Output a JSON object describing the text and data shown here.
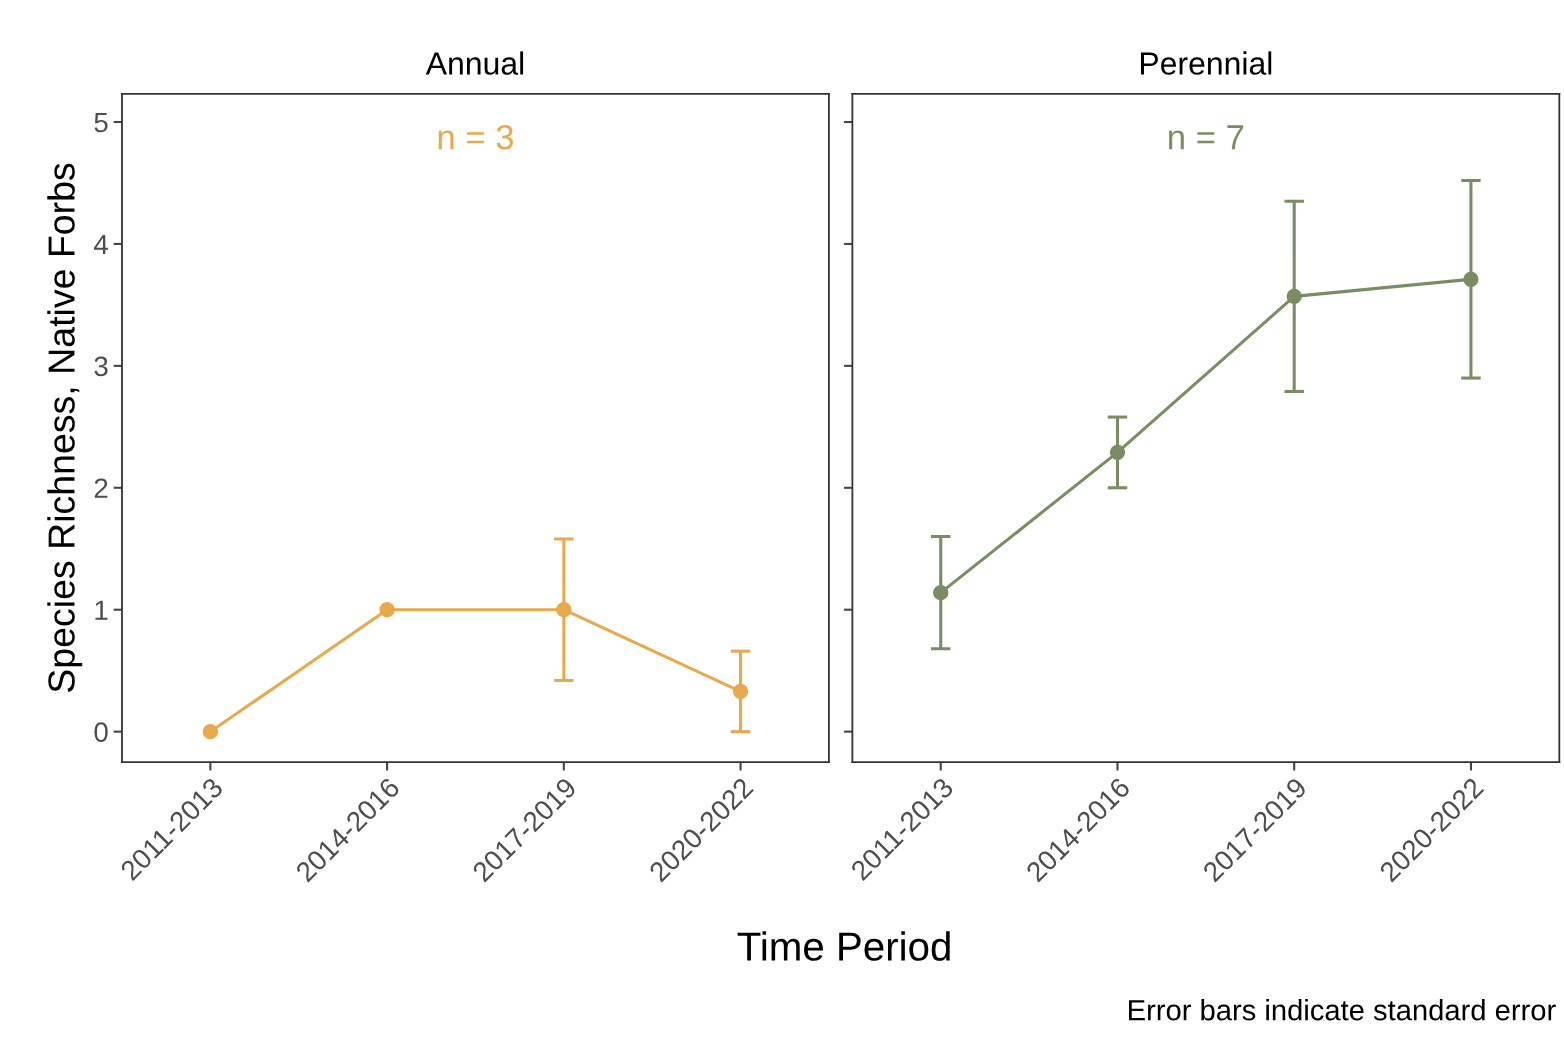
{
  "chart_data": [
    {
      "type": "line",
      "title": "Annual",
      "xlabel": "Time Period",
      "ylabel": "Species Richness, Native Forbs",
      "categories": [
        "2011-2013",
        "2014-2016",
        "2017-2019",
        "2020-2022"
      ],
      "series": [
        {
          "color": "#e8a84c",
          "values": [
            0,
            1,
            1,
            0.33
          ],
          "errors": [
            null,
            null,
            0.58,
            0.33
          ]
        }
      ],
      "annotations": [
        "n = 3"
      ],
      "ylim": [
        -0.25,
        5.23
      ],
      "yticks": [
        0,
        1,
        2,
        3,
        4,
        5
      ],
      "marker": "circle",
      "grid": false,
      "legend": false
    },
    {
      "type": "line",
      "title": "Perennial",
      "categories": [
        "2011-2013",
        "2014-2016",
        "2017-2019",
        "2020-2022"
      ],
      "series": [
        {
          "color": "#7a8c62",
          "values": [
            1.14,
            2.29,
            3.57,
            3.71
          ],
          "errors": [
            0.46,
            0.29,
            0.78,
            0.81
          ]
        }
      ],
      "annotations": [
        "n = 7",
        "Error bars indicate standard error"
      ],
      "ylim": [
        -0.25,
        5.23
      ],
      "yticks": [
        0,
        1,
        2,
        3,
        4,
        5
      ],
      "tick_labels": "x",
      "marker": "circle",
      "grid": false,
      "legend": false
    }
  ]
}
